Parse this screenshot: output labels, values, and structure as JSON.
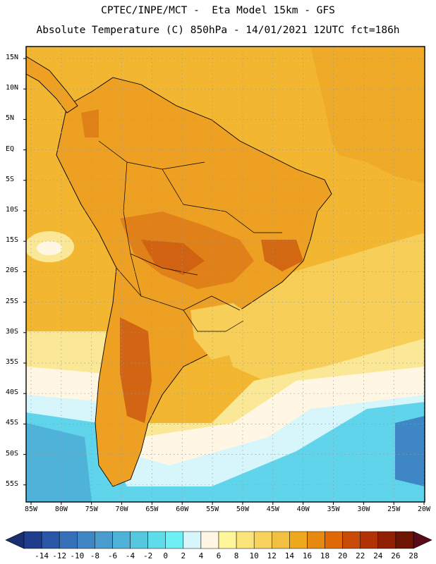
{
  "title_line1": "CPTEC/INPE/MCT -  Eta Model 15km - GFS",
  "title_line2": "Absolute Temperature (C) 850hPa - 14/01/2021 12UTC fct=186h",
  "lat_labels": [
    "15N",
    "10N",
    "5N",
    "EQ",
    "5S",
    "10S",
    "15S",
    "20S",
    "25S",
    "30S",
    "35S",
    "40S",
    "45S",
    "50S",
    "55S"
  ],
  "lon_labels": [
    "85W",
    "80W",
    "75W",
    "70W",
    "65W",
    "60W",
    "55W",
    "50W",
    "45W",
    "40W",
    "35W",
    "30W",
    "25W",
    "20W"
  ],
  "colorbar": {
    "labels": [
      "-14",
      "-12",
      "-10",
      "-8",
      "-6",
      "-4",
      "-2",
      "0",
      "2",
      "4",
      "6",
      "8",
      "10",
      "12",
      "14",
      "16",
      "18",
      "20",
      "22",
      "24",
      "26",
      "28"
    ],
    "colors": [
      "#1f3d8c",
      "#2a56a8",
      "#3570b8",
      "#3f86c4",
      "#4a9ccf",
      "#4fb2d8",
      "#55c8e0",
      "#5fdcea",
      "#6cf0f6",
      "#d6f6fb",
      "#fff7e3",
      "#fff59a",
      "#fbe57a",
      "#f7d35c",
      "#f2c040",
      "#efa91e",
      "#e88a12",
      "#e06a08",
      "#c94a06",
      "#b03205",
      "#922004",
      "#6e1403"
    ],
    "under_color": "#1a2f70",
    "over_color": "#5a0a18"
  },
  "colors": {
    "ocean_warm": "#f2b630",
    "ocean_mild": "#f7cf58",
    "ocean_cool": "#fbe896",
    "ocean_cold": "#5fd4ea",
    "land": "#eda022",
    "land_hot": "#e08018",
    "land_hottest": "#cc5a10",
    "andes_cool": "#f6c85a",
    "grid": "#9a9a9a"
  },
  "legend_icon": "colorbar-triangle-icon"
}
